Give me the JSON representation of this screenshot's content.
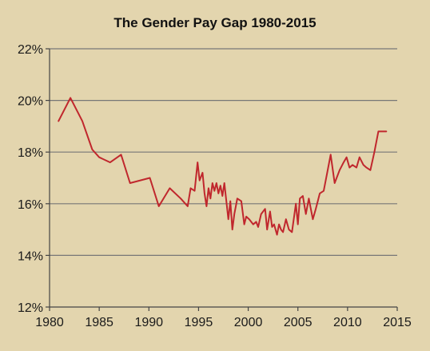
{
  "chart_data": {
    "type": "line",
    "title": "The Gender Pay Gap 1980-2015",
    "xlabel": "",
    "ylabel": "",
    "xlim": [
      1980,
      2015
    ],
    "ylim": [
      12,
      22
    ],
    "x_ticks": [
      1980,
      1985,
      1990,
      1995,
      2000,
      2005,
      2010,
      2015
    ],
    "y_ticks": [
      12,
      14,
      16,
      18,
      20,
      22
    ],
    "x_tick_labels": [
      "1980",
      "1985",
      "1990",
      "1995",
      "2000",
      "2005",
      "2010",
      "2015"
    ],
    "y_tick_labels": [
      "12%",
      "14%",
      "16%",
      "18%",
      "20%",
      "22%"
    ],
    "grid": "horizontal",
    "line_color": "#c0272d",
    "grid_color": "#777777",
    "axis_color": "#444444",
    "background": "#e3d5ae",
    "series": [
      {
        "x": [
          1980.9,
          1982.1,
          1983.3,
          1984.3,
          1985.0,
          1986.1,
          1987.2,
          1988.1,
          1990.1,
          1991.0,
          1992.1,
          1993.2,
          1993.9,
          1994.2,
          1994.6,
          1994.9,
          1995.1,
          1995.4,
          1995.6,
          1995.8,
          1996.0,
          1996.2,
          1996.4,
          1996.6,
          1996.8,
          1997.0,
          1997.2,
          1997.4,
          1997.6,
          1997.8,
          1998.0,
          1998.2,
          1998.4,
          1998.6,
          1998.9,
          1999.3,
          1999.6,
          1999.8,
          2000.1,
          2000.5,
          2000.8,
          2001.0,
          2001.3,
          2001.7,
          2001.9,
          2002.2,
          2002.4,
          2002.6,
          2002.9,
          2003.1,
          2003.3,
          2003.5,
          2003.8,
          2004.1,
          2004.4,
          2004.8,
          2005.0,
          2005.2,
          2005.5,
          2005.8,
          2006.1,
          2006.3,
          2006.5,
          2006.8,
          2007.2,
          2007.6,
          2008.0,
          2008.3,
          2008.7,
          2009.2,
          2009.6,
          2009.9,
          2010.2,
          2010.5,
          2010.9,
          2011.2,
          2011.6,
          2011.9,
          2012.3,
          2012.7,
          2013.1,
          2013.5,
          2013.9
        ],
        "y": [
          19.2,
          20.1,
          19.2,
          18.1,
          17.8,
          17.6,
          17.9,
          16.8,
          17.0,
          15.9,
          16.6,
          16.2,
          15.9,
          16.6,
          16.5,
          17.6,
          16.9,
          17.2,
          16.4,
          15.9,
          16.6,
          16.2,
          16.8,
          16.5,
          16.8,
          16.4,
          16.7,
          16.3,
          16.8,
          16.1,
          15.4,
          16.1,
          15.0,
          15.6,
          16.2,
          16.1,
          15.2,
          15.5,
          15.4,
          15.2,
          15.3,
          15.1,
          15.6,
          15.8,
          15.0,
          15.7,
          15.1,
          15.2,
          14.8,
          15.2,
          15.0,
          14.9,
          15.4,
          15.0,
          14.9,
          16.0,
          15.2,
          16.2,
          16.3,
          15.6,
          16.2,
          15.8,
          15.4,
          15.8,
          16.4,
          16.5,
          17.3,
          17.9,
          16.8,
          17.3,
          17.6,
          17.8,
          17.4,
          17.5,
          17.4,
          17.8,
          17.5,
          17.4,
          17.3,
          18.0,
          18.8,
          18.8,
          18.8
        ]
      }
    ]
  }
}
